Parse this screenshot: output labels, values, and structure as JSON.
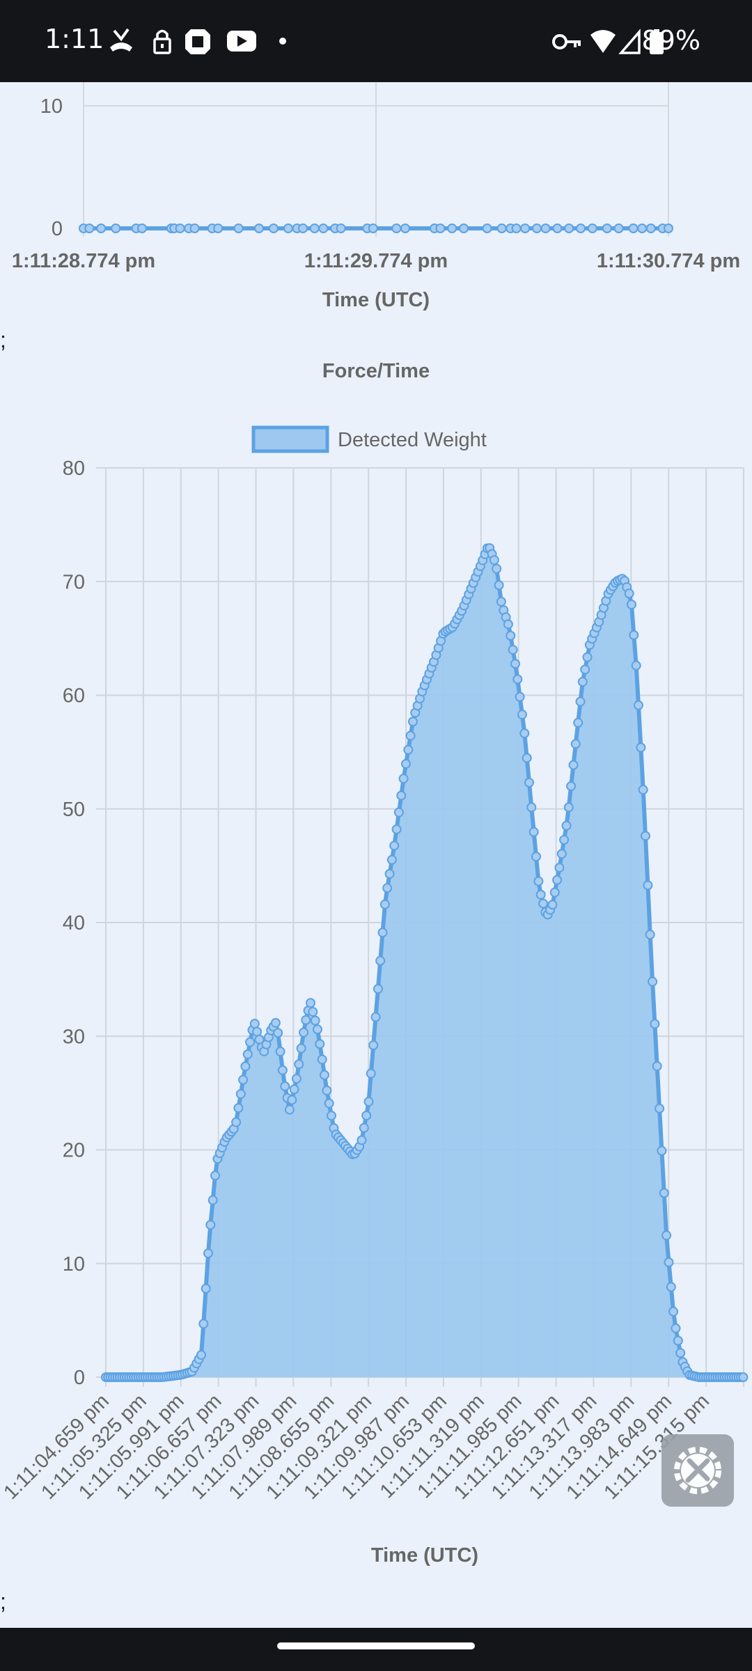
{
  "status_bar": {
    "time": "1:11",
    "battery": "89%",
    "icons_left": [
      "missed-call-icon",
      "lock-icon",
      "chase-icon",
      "youtube-icon",
      "dot-icon"
    ],
    "icons_right": [
      "vpn-key-icon",
      "wifi-icon",
      "signal-icon",
      "battery-icon"
    ]
  },
  "separator_1": ";",
  "separator_2": ";",
  "chart_data": [
    {
      "type": "line",
      "title": "",
      "xlabel": "Time (UTC)",
      "ylabel": "",
      "y_ticks": [
        "0",
        "10"
      ],
      "x_tick_labels": [
        "1:11:28.774 pm",
        "1:11:29.774 pm",
        "1:11:30.774 pm"
      ],
      "x": [
        0.0,
        0.02,
        0.06,
        0.11,
        0.18,
        0.2,
        0.3,
        0.31,
        0.33,
        0.36,
        0.38,
        0.44,
        0.46,
        0.53,
        0.6,
        0.65,
        0.7,
        0.73,
        0.75,
        0.79,
        0.82,
        0.86,
        0.88,
        0.97,
        0.99,
        1.07,
        1.1,
        1.2,
        1.22,
        1.26,
        1.3,
        1.38,
        1.43,
        1.46,
        1.48,
        1.51,
        1.55,
        1.58,
        1.62,
        1.66,
        1.7,
        1.74,
        1.79,
        1.83,
        1.88,
        1.91,
        1.94,
        1.98,
        2.0
      ],
      "values": [
        0,
        0,
        0,
        0,
        0,
        0,
        0,
        0,
        0,
        0,
        0,
        0,
        0,
        0,
        0,
        0,
        0,
        0,
        0,
        0,
        0,
        0,
        0,
        0,
        0,
        0,
        0,
        0,
        0,
        0,
        0,
        0,
        0,
        0,
        0,
        0,
        0,
        0,
        0,
        0,
        0,
        0,
        0,
        0,
        0,
        0,
        0,
        0,
        0
      ],
      "ylim": [
        0,
        10
      ],
      "color": "#5ca2e3",
      "grid": true
    },
    {
      "type": "area",
      "title": "Force/Time",
      "xlabel": "Time (UTC)",
      "ylabel": "",
      "legend": "top",
      "series": [
        {
          "name": "Detected Weight",
          "color": "#5ca2e3",
          "fill": "#9ec8ef"
        }
      ],
      "x_tick_labels": [
        "1:11:04.659 pm",
        "1:11:05.325 pm",
        "1:11:05.991 pm",
        "1:11:06.657 pm",
        "1:11:07.323 pm",
        "1:11:07.989 pm",
        "1:11:08.655 pm",
        "1:11:09.321 pm",
        "1:11:09.987 pm",
        "1:11:10.653 pm",
        "1:11:11.319 pm",
        "1:11:11.985 pm",
        "1:11:12.651 pm",
        "1:11:13.317 pm",
        "1:11:13.983 pm",
        "1:11:14.649 pm",
        "1:11:15.315 pm"
      ],
      "x_tick_indices": [
        0,
        1,
        2,
        3,
        4,
        5,
        6,
        7,
        8,
        9,
        10,
        11,
        12,
        13,
        14,
        15,
        16
      ],
      "y_ticks": [
        0,
        10,
        20,
        30,
        40,
        50,
        60,
        70,
        80
      ],
      "ylim": [
        0,
        80
      ],
      "xlim": [
        0,
        17.0
      ],
      "grid": true,
      "keypoints": [
        [
          0,
          0
        ],
        [
          1.5,
          0
        ],
        [
          2.0,
          0.2
        ],
        [
          2.3,
          0.5
        ],
        [
          2.55,
          2
        ],
        [
          2.75,
          12
        ],
        [
          2.95,
          19
        ],
        [
          3.2,
          21
        ],
        [
          3.45,
          22
        ],
        [
          3.7,
          27
        ],
        [
          3.95,
          31.3
        ],
        [
          4.2,
          28.5
        ],
        [
          4.4,
          30.5
        ],
        [
          4.55,
          31.3
        ],
        [
          4.75,
          26
        ],
        [
          4.9,
          23.5
        ],
        [
          5.1,
          26.5
        ],
        [
          5.3,
          31
        ],
        [
          5.45,
          33
        ],
        [
          5.65,
          30.5
        ],
        [
          5.9,
          25
        ],
        [
          6.1,
          21.5
        ],
        [
          6.35,
          20.5
        ],
        [
          6.6,
          19.5
        ],
        [
          6.8,
          20.5
        ],
        [
          7.0,
          24
        ],
        [
          7.2,
          32
        ],
        [
          7.45,
          42
        ],
        [
          7.7,
          47
        ],
        [
          7.95,
          53
        ],
        [
          8.2,
          58
        ],
        [
          8.45,
          60.5
        ],
        [
          8.75,
          63
        ],
        [
          9.0,
          65.5
        ],
        [
          9.25,
          66
        ],
        [
          9.5,
          67.5
        ],
        [
          9.75,
          69.5
        ],
        [
          10.0,
          71.5
        ],
        [
          10.2,
          73.2
        ],
        [
          10.4,
          71.5
        ],
        [
          10.55,
          68
        ],
        [
          10.75,
          66
        ],
        [
          10.95,
          62
        ],
        [
          11.15,
          57
        ],
        [
          11.35,
          50
        ],
        [
          11.55,
          43
        ],
        [
          11.75,
          40.5
        ],
        [
          11.9,
          41.5
        ],
        [
          12.1,
          45
        ],
        [
          12.3,
          49
        ],
        [
          12.5,
          55
        ],
        [
          12.7,
          61
        ],
        [
          12.9,
          64.5
        ],
        [
          13.15,
          66.5
        ],
        [
          13.4,
          69
        ],
        [
          13.6,
          70
        ],
        [
          13.8,
          70.3
        ],
        [
          14.0,
          68.5
        ],
        [
          14.15,
          62
        ],
        [
          14.35,
          50
        ],
        [
          14.55,
          36
        ],
        [
          14.75,
          24
        ],
        [
          14.95,
          12
        ],
        [
          15.15,
          5
        ],
        [
          15.35,
          1.5
        ],
        [
          15.55,
          0.2
        ],
        [
          15.8,
          0
        ],
        [
          17.0,
          0
        ]
      ]
    }
  ]
}
